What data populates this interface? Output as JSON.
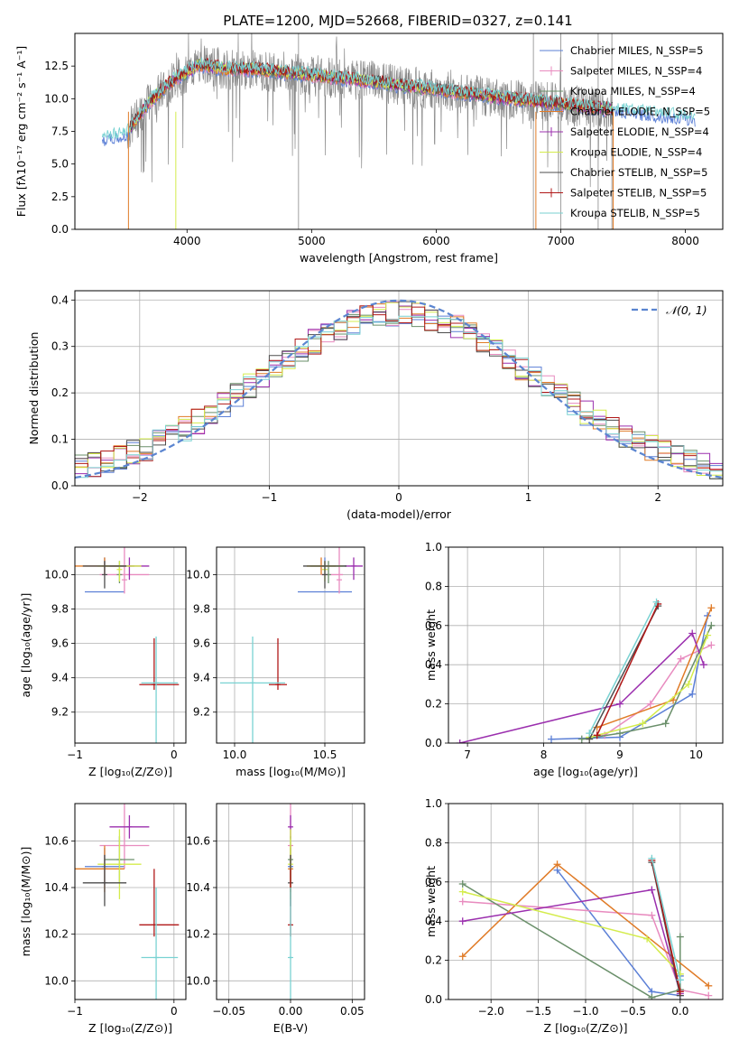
{
  "colors": {
    "chabrier_miles": "#5b7fd6",
    "salpeter_miles": "#e88bbf",
    "kroupa_miles": "#6a8f6a",
    "chabrier_elodie": "#e07b27",
    "salpeter_elodie": "#9b2fae",
    "kroupa_elodie": "#d4ec4c",
    "chabrier_stelib": "#4d4d4d",
    "salpeter_stelib": "#b01818",
    "kroupa_stelib": "#79d2d2",
    "normal": "#5b85d0"
  },
  "chart_data": [
    {
      "id": "spectrum",
      "type": "line",
      "title": "PLATE=1200, MJD=52668, FIBERID=0327, z=0.141",
      "xlabel": "wavelength [Angstrom, rest frame]",
      "ylabel": "Flux [fλ10⁻¹⁷ erg cm⁻² s⁻¹ A⁻¹]",
      "xlim": [
        3100,
        8300
      ],
      "ylim": [
        0,
        15
      ],
      "xticks": [
        "4000",
        "5000",
        "6000",
        "7000",
        "8000"
      ],
      "yticks": [
        "0.0",
        "2.5",
        "5.0",
        "7.5",
        "10.0",
        "12.5"
      ],
      "legend": [
        "Chabrier MILES, N_SSP=5",
        "Salpeter MILES, N_SSP=4",
        "Kroupa MILES, N_SSP=4",
        "Chabrier ELODIE, N_SSP=5",
        "Salpeter ELODIE, N_SSP=4",
        "Kroupa ELODIE, N_SSP=4",
        "Chabrier STELIB, N_SSP=5",
        "Salpeter STELIB, N_SSP=5",
        "Kroupa STELIB, N_SSP=5"
      ],
      "legend_position": "top-right",
      "grid": false,
      "continuum": [
        [
          3320,
          7.0
        ],
        [
          3500,
          7.2
        ],
        [
          3700,
          9.8
        ],
        [
          3900,
          11.5
        ],
        [
          4100,
          12.6
        ],
        [
          4300,
          12.3
        ],
        [
          4600,
          12.2
        ],
        [
          5000,
          11.8
        ],
        [
          5500,
          11.3
        ],
        [
          6000,
          10.7
        ],
        [
          6500,
          10.1
        ],
        [
          7000,
          9.6
        ],
        [
          7500,
          9.1
        ],
        [
          8000,
          8.6
        ],
        [
          8080,
          8.5
        ]
      ]
    },
    {
      "id": "residuals",
      "type": "histogram",
      "xlabel": "(data-model)/error",
      "ylabel": "Normed distribution",
      "xlim": [
        -2.5,
        2.5
      ],
      "ylim": [
        0,
        0.42
      ],
      "xticks": [
        "−2",
        "−1",
        "0",
        "1",
        "2"
      ],
      "yticks": [
        "0.0",
        "0.1",
        "0.2",
        "0.3",
        "0.4"
      ],
      "legend": [
        "𝒩(0, 1)"
      ],
      "legend_position": "top-right",
      "grid": true,
      "bin_width": 0.1
    },
    {
      "id": "age-vs-Z",
      "type": "errorbar",
      "xlabel": "Z [log₁₀(Z/Z⊙)]",
      "ylabel": "age  [log₁₀(age/yr)]",
      "xlim": [
        -1.0,
        0.12
      ],
      "ylim": [
        9.02,
        10.16
      ],
      "xticks": [
        "−1",
        "0"
      ],
      "yticks": [
        "9.2",
        "9.4",
        "9.6",
        "9.8",
        "10.0"
      ],
      "grid": true
    },
    {
      "id": "age-vs-mass",
      "type": "errorbar",
      "xlabel": "mass [log₁₀(M/M⊙)]",
      "ylabel": "",
      "xlim": [
        9.9,
        10.72
      ],
      "ylim": [
        9.02,
        10.16
      ],
      "xticks": [
        "10.0",
        "10.5"
      ],
      "yticks": [
        "9.2",
        "9.4",
        "9.6",
        "9.8",
        "10.0"
      ],
      "grid": true
    },
    {
      "id": "weight-vs-age",
      "type": "line",
      "xlabel": "age  [log₁₀(age/yr)]",
      "ylabel": "mass weight",
      "xlim": [
        6.75,
        10.35
      ],
      "ylim": [
        0,
        1.0
      ],
      "xticks": [
        "7",
        "8",
        "9",
        "10"
      ],
      "yticks": [
        "0.0",
        "0.2",
        "0.4",
        "0.6",
        "0.8",
        "1.0"
      ],
      "grid": true
    },
    {
      "id": "mass-vs-Z",
      "type": "errorbar",
      "xlabel": "Z [log₁₀(Z/Z⊙)]",
      "ylabel": "mass [log₁₀(M/M⊙)]",
      "xlim": [
        -1.0,
        0.12
      ],
      "ylim": [
        9.92,
        10.76
      ],
      "xticks": [
        "−1",
        "0"
      ],
      "yticks": [
        "10.0",
        "10.2",
        "10.4",
        "10.6"
      ],
      "grid": true
    },
    {
      "id": "mass-vs-ebv",
      "type": "errorbar",
      "xlabel": "E(B-V)",
      "ylabel": "",
      "xlim": [
        -0.06,
        0.06
      ],
      "ylim": [
        9.92,
        10.76
      ],
      "xticks": [
        "−0.05",
        "0.00",
        "0.05"
      ],
      "yticks": [
        "10.0",
        "10.2",
        "10.4",
        "10.6"
      ],
      "grid": true
    },
    {
      "id": "weight-vs-Z",
      "type": "line",
      "xlabel": "Z [log₁₀(Z/Z⊙)]",
      "ylabel": "mass weight",
      "xlim": [
        -2.45,
        0.45
      ],
      "ylim": [
        0,
        1.0
      ],
      "xticks": [
        "−2.0",
        "−1.5",
        "−1.0",
        "−0.5",
        "0.0"
      ],
      "yticks": [
        "0.0",
        "0.2",
        "0.4",
        "0.6",
        "0.8",
        "1.0"
      ],
      "grid": true
    }
  ],
  "fits": [
    {
      "key": "chabrier_miles",
      "age": [
        9.9,
        10.05,
        0.05,
        0.05
      ],
      "Z": [
        -0.7,
        0.2,
        0.2
      ],
      "M": [
        10.5,
        0.15,
        0.15
      ],
      "Mv": [
        10.49,
        0.08,
        0.08
      ],
      "wa": [
        [
          8.1,
          0.02
        ],
        [
          9.0,
          0.03
        ],
        [
          9.95,
          0.25
        ],
        [
          10.15,
          0.65
        ]
      ],
      "wz": [
        [
          -1.3,
          0.66
        ],
        [
          -0.3,
          0.04
        ],
        [
          0.0,
          0.02
        ],
        [
          0.0,
          0.12
        ]
      ]
    },
    {
      "key": "salpeter_miles",
      "age": [
        10.0,
        9.97,
        0.08,
        0.4
      ],
      "Z": [
        -0.5,
        0.25,
        0.25
      ],
      "M": [
        10.58,
        0.1,
        0.02
      ],
      "Mv": [
        10.58,
        0.1,
        0.22
      ],
      "wa": [
        [
          8.8,
          0.04
        ],
        [
          9.4,
          0.2
        ],
        [
          9.8,
          0.43
        ],
        [
          10.2,
          0.5
        ]
      ],
      "wz": [
        [
          -2.3,
          0.5
        ],
        [
          -0.3,
          0.43
        ],
        [
          0.0,
          0.05
        ],
        [
          0.3,
          0.02
        ]
      ]
    },
    {
      "key": "kroupa_miles",
      "age": [
        10.05,
        10.0,
        0.05,
        0.08
      ],
      "Z": [
        -0.55,
        0.15,
        0.15
      ],
      "M": [
        10.52,
        0.1,
        0.1
      ],
      "Mv": [
        10.52,
        0.1,
        0.1
      ],
      "wa": [
        [
          8.5,
          0.02
        ],
        [
          9.0,
          0.05
        ],
        [
          9.6,
          0.1
        ],
        [
          10.2,
          0.6
        ]
      ],
      "wz": [
        [
          -2.3,
          0.59
        ],
        [
          -0.3,
          0.01
        ],
        [
          0.0,
          0.05
        ],
        [
          0.0,
          0.32
        ]
      ]
    },
    {
      "key": "chabrier_elodie",
      "age": [
        10.05,
        10.05,
        0.05,
        0.05
      ],
      "Z": [
        -0.7,
        0.3,
        0.2
      ],
      "M": [
        10.48,
        0.08,
        0.08
      ],
      "Mv": [
        10.48,
        0.1,
        0.1
      ],
      "wa": [
        [
          8.7,
          0.08
        ],
        [
          9.7,
          0.22
        ],
        [
          10.2,
          0.69
        ]
      ],
      "wz": [
        [
          -2.3,
          0.22
        ],
        [
          -1.3,
          0.69
        ],
        [
          0.3,
          0.07
        ]
      ]
    },
    {
      "key": "salpeter_elodie",
      "age": [
        10.05,
        10.05,
        0.08,
        0.05
      ],
      "Z": [
        -0.45,
        0.2,
        0.2
      ],
      "M": [
        10.66,
        0.05,
        0.05
      ],
      "Mv": [
        10.66,
        0.05,
        0.05
      ],
      "wa": [
        [
          6.9,
          0.0
        ],
        [
          9.0,
          0.2
        ],
        [
          9.95,
          0.56
        ],
        [
          10.1,
          0.4
        ]
      ],
      "wz": [
        [
          -2.3,
          0.4
        ],
        [
          -0.3,
          0.56
        ],
        [
          0.0,
          0.03
        ]
      ]
    },
    {
      "key": "kroupa_elodie",
      "age": [
        10.05,
        10.03,
        0.07,
        0.05
      ],
      "Z": [
        -0.55,
        0.22,
        0.22
      ],
      "M": [
        10.5,
        0.1,
        0.1
      ],
      "Mv": [
        10.5,
        0.15,
        0.15
      ],
      "wa": [
        [
          8.6,
          0.03
        ],
        [
          9.3,
          0.1
        ],
        [
          9.9,
          0.3
        ],
        [
          10.15,
          0.55
        ]
      ],
      "wz": [
        [
          -2.3,
          0.55
        ],
        [
          -0.35,
          0.31
        ],
        [
          0.0,
          0.13
        ]
      ]
    },
    {
      "key": "chabrier_stelib",
      "age": [
        10.05,
        10.0,
        0.08,
        0.08
      ],
      "Z": [
        -0.7,
        0.22,
        0.22
      ],
      "M": [
        10.5,
        0.12,
        0.12
      ],
      "Mv": [
        10.42,
        0.1,
        0.12
      ],
      "wa": [
        [
          8.6,
          0.02
        ],
        [
          9.5,
          0.7
        ]
      ],
      "wz": [
        [
          -0.3,
          0.7
        ],
        [
          0.0,
          0.02
        ]
      ]
    },
    {
      "key": "salpeter_stelib",
      "age": [
        9.36,
        9.36,
        0.03,
        0.27
      ],
      "Z": [
        -0.2,
        0.15,
        0.25
      ],
      "M": [
        10.24,
        0.05,
        0.05
      ],
      "Mv": [
        10.24,
        0.05,
        0.24
      ],
      "wa": [
        [
          8.7,
          0.04
        ],
        [
          9.5,
          0.71
        ]
      ],
      "wz": [
        [
          -0.3,
          0.71
        ],
        [
          0.0,
          0.04
        ]
      ]
    },
    {
      "key": "kroupa_stelib",
      "age": [
        9.37,
        9.37,
        0.45,
        0.27
      ],
      "Z": [
        -0.18,
        0.15,
        0.22
      ],
      "M": [
        10.1,
        0.18,
        0.18
      ],
      "Mv": [
        10.1,
        0.18,
        0.3
      ],
      "wa": [
        [
          8.6,
          0.05
        ],
        [
          9.48,
          0.72
        ]
      ],
      "wz": [
        [
          -0.3,
          0.72
        ],
        [
          0.0,
          0.1
        ]
      ]
    }
  ]
}
